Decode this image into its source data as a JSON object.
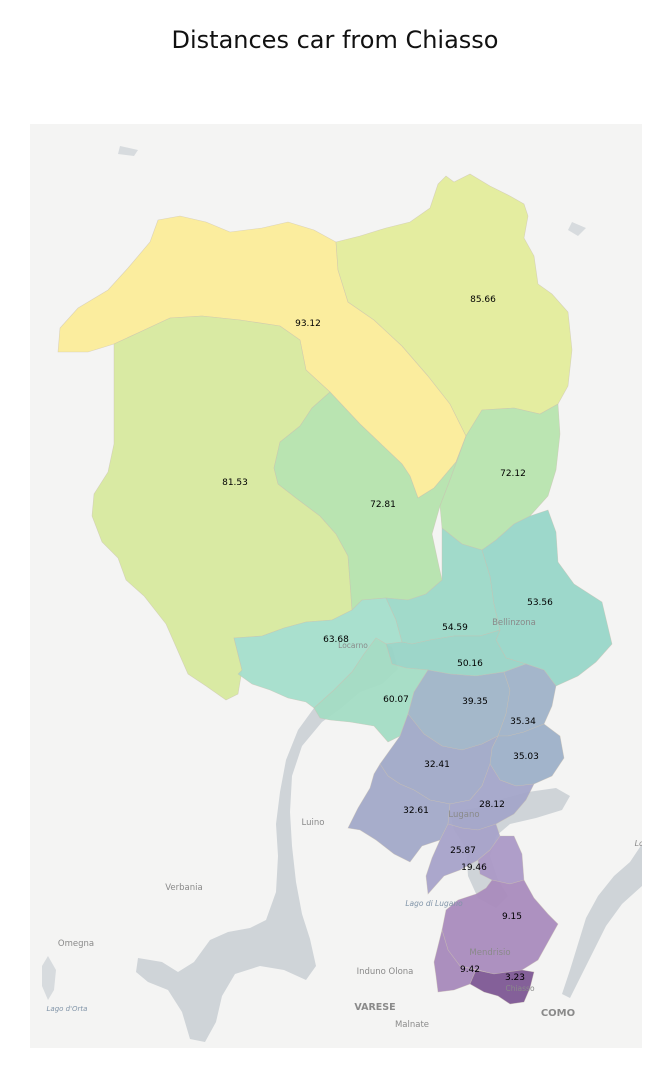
{
  "title": "Distances car from Chiasso",
  "regions": [
    {
      "id": "r1",
      "value": "93.12",
      "color": "#fbec99"
    },
    {
      "id": "r2",
      "value": "85.66",
      "color": "#e3ec9b"
    },
    {
      "id": "r3",
      "value": "81.53",
      "color": "#d7e99e"
    },
    {
      "id": "r4",
      "value": "72.81",
      "color": "#b5e3ad"
    },
    {
      "id": "r5",
      "value": "72.12",
      "color": "#b7e4ae"
    },
    {
      "id": "r6",
      "value": "63.68",
      "color": "#a4decb"
    },
    {
      "id": "r7",
      "value": "54.59",
      "color": "#9cd8c7"
    },
    {
      "id": "r8",
      "value": "53.56",
      "color": "#98d6c8"
    },
    {
      "id": "r9",
      "value": "50.16",
      "color": "#98d4c6"
    },
    {
      "id": "r10",
      "value": "60.07",
      "color": "#a3dcc4"
    },
    {
      "id": "r11",
      "value": "39.35",
      "color": "#9fb4c7"
    },
    {
      "id": "r12",
      "value": "35.34",
      "color": "#9fb2c8"
    },
    {
      "id": "r13",
      "value": "35.03",
      "color": "#9db0c8"
    },
    {
      "id": "r14",
      "value": "32.41",
      "color": "#a0a9c7"
    },
    {
      "id": "r15",
      "value": "32.61",
      "color": "#a2a9c8"
    },
    {
      "id": "r16",
      "value": "28.12",
      "color": "#a3a5c9"
    },
    {
      "id": "r17",
      "value": "25.87",
      "color": "#a6a2c9"
    },
    {
      "id": "r18",
      "value": "19.46",
      "color": "#ab99c6"
    },
    {
      "id": "r19",
      "value": "9.15",
      "color": "#a98bbd"
    },
    {
      "id": "r20",
      "value": "9.42",
      "color": "#a789bb"
    },
    {
      "id": "r21",
      "value": "3.23",
      "color": "#7d5794"
    }
  ],
  "places": {
    "bellinzona": "Bellinzona",
    "locarno": "Locarno",
    "lugano": "Lugano",
    "luino": "Luino",
    "verbania": "Verbania",
    "omegna": "Omegna",
    "mendrisio": "Mendrisio",
    "chiasso": "Chiasso",
    "induno": "Induno Olona",
    "varese": "VARESE",
    "malnate": "Malnate",
    "como": "COMO",
    "lago_lugano": "Lago di Lugano",
    "lago_orta": "Lago d'Orta",
    "lc": "Lc"
  }
}
